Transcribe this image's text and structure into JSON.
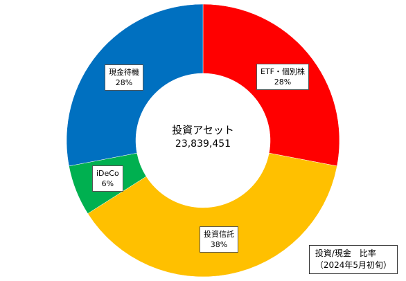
{
  "chart_data": {
    "type": "pie",
    "donut": true,
    "categories": [
      "ETF・個別株",
      "投資信託",
      "iDeCo",
      "現金待機"
    ],
    "values": [
      28,
      38,
      6,
      28
    ],
    "value_labels": [
      "28%",
      "38%",
      "6%",
      "28%"
    ],
    "colors": [
      "#ff0000",
      "#ffc000",
      "#00b050",
      "#0070c0"
    ],
    "center_title": "投資アセット",
    "center_value": "23,839,451",
    "caption_line1": "投資/現金　比率",
    "caption_line2": "（2024年5月初旬）",
    "legend": "none"
  }
}
